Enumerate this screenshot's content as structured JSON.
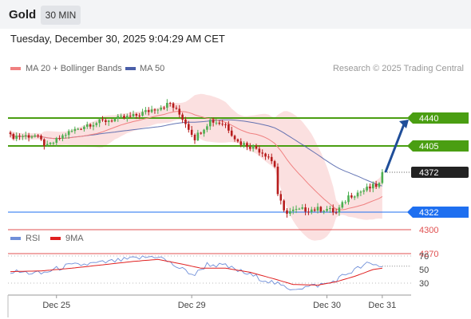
{
  "header": {
    "instrument": "Gold",
    "timeframe": "30 MIN"
  },
  "timestamp": "Tuesday, December 30, 2025 9:04:29 AM CET",
  "legend": {
    "ma20_label": "MA 20 + Bollinger Bands",
    "ma50_label": "MA 50",
    "copyright": "Research © 2025 Trading Central"
  },
  "rsi_legend": {
    "rsi_label": "RSI",
    "ma_label": "9MA"
  },
  "colors": {
    "ma20": "#f08080",
    "ma50": "#4a5ea8",
    "band_fill": "#fadada",
    "bull": "#4caf50",
    "bear": "#b71c1c",
    "resistance": "#4a9e12",
    "current": "#222222",
    "support_blue": "#1e6ff0",
    "support_red": "#e05050",
    "arrow": "#1f4e99",
    "rsi": "#6f8fd9",
    "rsi_ma": "#e02020"
  },
  "chart_data": [
    {
      "type": "candlestick",
      "title": "Gold",
      "x_labels": [
        "Dec 25",
        "Dec 29",
        "Dec 30",
        "Dec 31"
      ],
      "ylim": [
        4265,
        4475
      ],
      "levels": [
        {
          "value": 4440,
          "label": "4440",
          "kind": "resistance"
        },
        {
          "value": 4405,
          "label": "4405",
          "kind": "resistance"
        },
        {
          "value": 4372,
          "label": "4372",
          "kind": "current"
        },
        {
          "value": 4322,
          "label": "4322",
          "kind": "support"
        },
        {
          "value": 4300,
          "label": "4300",
          "kind": "support-minor"
        },
        {
          "value": 4270,
          "label": "4270",
          "kind": "support-minor"
        }
      ],
      "anchors": [
        {
          "i": 0,
          "p": 4417
        },
        {
          "i": 8,
          "p": 4418
        },
        {
          "i": 12,
          "p": 4404
        },
        {
          "i": 18,
          "p": 4420
        },
        {
          "i": 25,
          "p": 4432
        },
        {
          "i": 33,
          "p": 4438
        },
        {
          "i": 40,
          "p": 4442
        },
        {
          "i": 47,
          "p": 4452
        },
        {
          "i": 52,
          "p": 4458
        },
        {
          "i": 56,
          "p": 4440
        },
        {
          "i": 60,
          "p": 4415
        },
        {
          "i": 65,
          "p": 4437
        },
        {
          "i": 70,
          "p": 4432
        },
        {
          "i": 74,
          "p": 4410
        },
        {
          "i": 80,
          "p": 4402
        },
        {
          "i": 84,
          "p": 4392
        },
        {
          "i": 86,
          "p": 4380
        },
        {
          "i": 87,
          "p": 4345
        },
        {
          "i": 89,
          "p": 4322
        },
        {
          "i": 95,
          "p": 4325
        },
        {
          "i": 103,
          "p": 4326
        },
        {
          "i": 106,
          "p": 4321
        },
        {
          "i": 110,
          "p": 4342
        },
        {
          "i": 118,
          "p": 4354
        },
        {
          "i": 121,
          "p": 4358
        }
      ],
      "projection_arrow": {
        "from": 4372,
        "to": 4440
      }
    },
    {
      "type": "line",
      "title": "RSI",
      "ylim": [
        15,
        80
      ],
      "y_ticks": [
        "70",
        "50",
        "30"
      ],
      "guides": [
        70,
        30
      ],
      "series": [
        {
          "name": "RSI",
          "anchors": [
            [
              0,
              47
            ],
            [
              10,
              44
            ],
            [
              18,
              55
            ],
            [
              30,
              60
            ],
            [
              40,
              66
            ],
            [
              48,
              70
            ],
            [
              55,
              52
            ],
            [
              60,
              42
            ],
            [
              64,
              58
            ],
            [
              70,
              55
            ],
            [
              78,
              42
            ],
            [
              86,
              30
            ],
            [
              90,
              22
            ],
            [
              96,
              24
            ],
            [
              104,
              30
            ],
            [
              110,
              45
            ],
            [
              116,
              58
            ],
            [
              121,
              55
            ]
          ]
        },
        {
          "name": "9MA",
          "anchors": [
            [
              0,
              47
            ],
            [
              10,
              48
            ],
            [
              20,
              52
            ],
            [
              30,
              57
            ],
            [
              40,
              62
            ],
            [
              48,
              65
            ],
            [
              56,
              58
            ],
            [
              62,
              52
            ],
            [
              70,
              52
            ],
            [
              78,
              46
            ],
            [
              86,
              36
            ],
            [
              92,
              28
            ],
            [
              100,
              27
            ],
            [
              106,
              32
            ],
            [
              112,
              40
            ],
            [
              118,
              50
            ],
            [
              121,
              52
            ]
          ]
        }
      ]
    }
  ]
}
